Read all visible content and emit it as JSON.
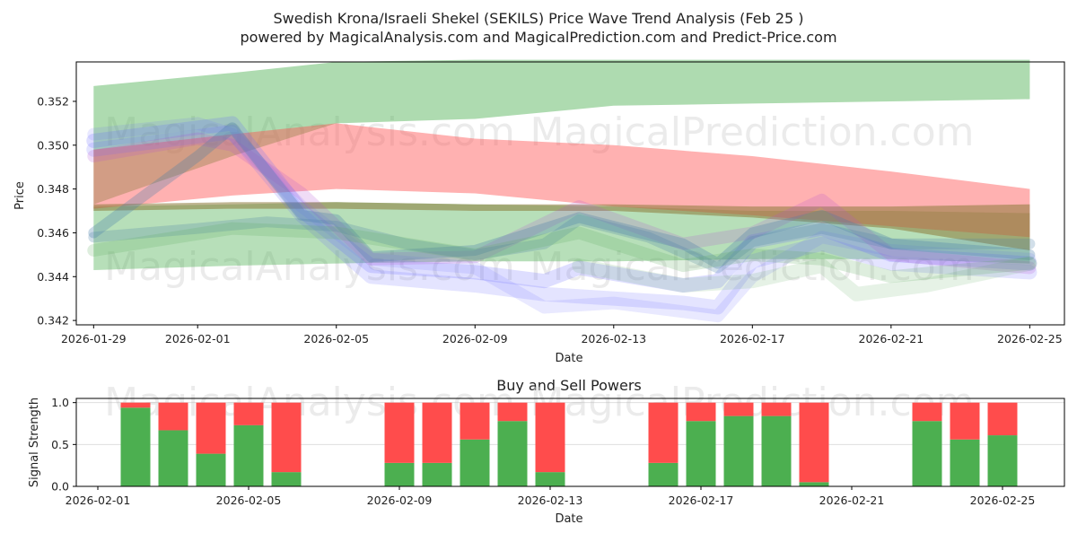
{
  "chart_data": [
    {
      "type": "area",
      "title": "Swedish Krona/Israeli Shekel (SEKILS) Price Wave Trend Analysis (Feb 25 )",
      "subtitle": "powered by MagicalAnalysis.com and MagicalPrediction.com and Predict-Price.com",
      "xlabel": "Date",
      "ylabel": "Price",
      "xlim": [
        "2026-01-28T12:00",
        "2026-02-26"
      ],
      "ylim": [
        0.3418,
        0.3538
      ],
      "x_ticks": [
        "2026-01-29",
        "2026-02-01",
        "2026-02-05",
        "2026-02-09",
        "2026-02-13",
        "2026-02-17",
        "2026-02-21",
        "2026-02-25"
      ],
      "y_ticks": [
        0.342,
        0.344,
        0.346,
        0.348,
        0.35,
        0.352
      ],
      "y_tick_labels": [
        "0.342",
        "0.344",
        "0.346",
        "0.348",
        "0.350",
        "0.352"
      ],
      "watermarks": [
        "MagicalAnalysis.com",
        "MagicalPrediction.com",
        "MagicalAnalysis.com",
        "MagicalPrediction.com"
      ],
      "bands": [
        {
          "name": "green-channel-upper",
          "color": "#4caf50",
          "opacity": 0.45,
          "x": [
            "2026-01-29",
            "2026-02-02",
            "2026-02-05",
            "2026-02-09",
            "2026-02-13",
            "2026-02-17",
            "2026-02-21",
            "2026-02-25"
          ],
          "upper": [
            0.3527,
            0.3533,
            0.3538,
            0.3539,
            0.3539,
            0.3539,
            0.3539,
            0.3539
          ],
          "lower": [
            0.3473,
            0.3495,
            0.351,
            0.3512,
            0.3518,
            0.3519,
            0.352,
            0.3521
          ]
        },
        {
          "name": "green-channel-lower",
          "color": "#4caf50",
          "opacity": 0.4,
          "x": [
            "2026-01-29",
            "2026-02-02",
            "2026-02-05",
            "2026-02-09",
            "2026-02-13",
            "2026-02-17",
            "2026-02-21",
            "2026-02-25"
          ],
          "upper": [
            0.3472,
            0.3473,
            0.3474,
            0.3473,
            0.3472,
            0.347,
            0.347,
            0.3469
          ],
          "lower": [
            0.3443,
            0.3445,
            0.3446,
            0.3447,
            0.3447,
            0.3448,
            0.3448,
            0.3446
          ]
        },
        {
          "name": "red-channel",
          "color": "#ff5252",
          "opacity": 0.45,
          "x": [
            "2026-01-29",
            "2026-02-02",
            "2026-02-05",
            "2026-02-09",
            "2026-02-13",
            "2026-02-17",
            "2026-02-21",
            "2026-02-25"
          ],
          "upper": [
            0.3498,
            0.3505,
            0.351,
            0.3503,
            0.35,
            0.3495,
            0.3488,
            0.348
          ],
          "lower": [
            0.3471,
            0.3477,
            0.348,
            0.3478,
            0.3472,
            0.3468,
            0.3463,
            0.3458
          ]
        },
        {
          "name": "olive-channel",
          "color": "#8d7a3a",
          "opacity": 0.55,
          "x": [
            "2026-01-29",
            "2026-02-02",
            "2026-02-05",
            "2026-02-09",
            "2026-02-13",
            "2026-02-17",
            "2026-02-21",
            "2026-02-25"
          ],
          "upper": [
            0.3473,
            0.3474,
            0.3474,
            0.3473,
            0.3473,
            0.3472,
            0.3472,
            0.3473
          ],
          "lower": [
            0.347,
            0.3471,
            0.3471,
            0.347,
            0.347,
            0.3467,
            0.3462,
            0.3452
          ]
        }
      ],
      "wave_lines": [
        {
          "name": "blue-wave-1",
          "color": "#6b6bff",
          "opacity": 0.22,
          "width": 16,
          "x": [
            "2026-01-29",
            "2026-02-01",
            "2026-02-02",
            "2026-02-04",
            "2026-02-06",
            "2026-02-09",
            "2026-02-11",
            "2026-02-12",
            "2026-02-15",
            "2026-02-16",
            "2026-02-17",
            "2026-02-19",
            "2026-02-21",
            "2026-02-25"
          ],
          "y": [
            0.3502,
            0.3508,
            0.351,
            0.347,
            0.3445,
            0.3442,
            0.3438,
            0.3444,
            0.3436,
            0.3438,
            0.3456,
            0.3462,
            0.345,
            0.3446
          ]
        },
        {
          "name": "blue-wave-2",
          "color": "#6b6bff",
          "opacity": 0.18,
          "width": 16,
          "x": [
            "2026-01-29",
            "2026-02-01",
            "2026-02-02",
            "2026-02-04",
            "2026-02-06",
            "2026-02-09",
            "2026-02-11",
            "2026-02-13",
            "2026-02-15",
            "2026-02-16",
            "2026-02-17",
            "2026-02-19",
            "2026-02-21",
            "2026-02-25"
          ],
          "y": [
            0.3498,
            0.3504,
            0.3506,
            0.3468,
            0.344,
            0.3436,
            0.3432,
            0.343,
            0.3428,
            0.3426,
            0.3447,
            0.3455,
            0.3446,
            0.3442
          ]
        },
        {
          "name": "blue-wave-3",
          "color": "#6b6bff",
          "opacity": 0.15,
          "width": 14,
          "x": [
            "2026-01-29",
            "2026-02-01",
            "2026-02-02",
            "2026-02-04",
            "2026-02-06",
            "2026-02-09",
            "2026-02-11",
            "2026-02-13",
            "2026-02-16",
            "2026-02-17",
            "2026-02-19",
            "2026-02-21",
            "2026-02-25"
          ],
          "y": [
            0.3505,
            0.351,
            0.3505,
            0.3472,
            0.3448,
            0.3444,
            0.3426,
            0.3428,
            0.3422,
            0.344,
            0.3458,
            0.3452,
            0.3448
          ]
        },
        {
          "name": "purple-wave",
          "color": "#b24fd0",
          "opacity": 0.2,
          "width": 14,
          "x": [
            "2026-01-29",
            "2026-02-01",
            "2026-02-02",
            "2026-02-04",
            "2026-02-06",
            "2026-02-09",
            "2026-02-12",
            "2026-02-15",
            "2026-02-17",
            "2026-02-19",
            "2026-02-21",
            "2026-02-25"
          ],
          "y": [
            0.3495,
            0.3503,
            0.35,
            0.3478,
            0.3448,
            0.3449,
            0.3472,
            0.3455,
            0.346,
            0.3475,
            0.345,
            0.3444
          ]
        },
        {
          "name": "teal-wave-1",
          "color": "#4a7fa8",
          "opacity": 0.3,
          "width": 12,
          "x": [
            "2026-01-29",
            "2026-02-01",
            "2026-02-02",
            "2026-02-04",
            "2026-02-05",
            "2026-02-06",
            "2026-02-09",
            "2026-02-12",
            "2026-02-15",
            "2026-02-16",
            "2026-02-17",
            "2026-02-19",
            "2026-02-21",
            "2026-02-25"
          ],
          "y": [
            0.346,
            0.3495,
            0.3508,
            0.3468,
            0.3466,
            0.3449,
            0.3452,
            0.3467,
            0.3455,
            0.3446,
            0.346,
            0.3468,
            0.3455,
            0.345
          ]
        },
        {
          "name": "teal-wave-2",
          "color": "#4a7fa8",
          "opacity": 0.25,
          "width": 12,
          "x": [
            "2026-01-29",
            "2026-02-01",
            "2026-02-03",
            "2026-02-05",
            "2026-02-07",
            "2026-02-09",
            "2026-02-11",
            "2026-02-12",
            "2026-02-14",
            "2026-02-16",
            "2026-02-17",
            "2026-02-19",
            "2026-02-21",
            "2026-02-25"
          ],
          "y": [
            0.3458,
            0.3462,
            0.3465,
            0.3463,
            0.3455,
            0.345,
            0.3455,
            0.3466,
            0.3458,
            0.3444,
            0.3456,
            0.3462,
            0.3455,
            0.3455
          ]
        },
        {
          "name": "green-wave",
          "color": "#5aa85a",
          "opacity": 0.2,
          "width": 14,
          "x": [
            "2026-01-29",
            "2026-02-02",
            "2026-02-05",
            "2026-02-09",
            "2026-02-12",
            "2026-02-15",
            "2026-02-17",
            "2026-02-19",
            "2026-02-21",
            "2026-02-25"
          ],
          "y": [
            0.3452,
            0.3462,
            0.346,
            0.345,
            0.346,
            0.3445,
            0.345,
            0.3448,
            0.344,
            0.3446
          ]
        },
        {
          "name": "green-wave-low",
          "color": "#5aa85a",
          "opacity": 0.15,
          "width": 16,
          "x": [
            "2026-02-12",
            "2026-02-15",
            "2026-02-17",
            "2026-02-19",
            "2026-02-20",
            "2026-02-22",
            "2026-02-25"
          ],
          "y": [
            0.3445,
            0.3436,
            0.3438,
            0.3445,
            0.3432,
            0.3436,
            0.3446
          ]
        }
      ]
    },
    {
      "type": "bar",
      "title": "Buy and Sell Powers",
      "xlabel": "Date",
      "ylabel": "Signal Strength",
      "ylim": [
        0,
        1.05
      ],
      "y_ticks": [
        0.0,
        0.5,
        1.0
      ],
      "y_tick_labels": [
        "0.0",
        "0.5",
        "1.0"
      ],
      "x_ticks": [
        "2026-02-01",
        "2026-02-05",
        "2026-02-09",
        "2026-02-13",
        "2026-02-17",
        "2026-02-21",
        "2026-02-25"
      ],
      "buy_color": "#4caf50",
      "sell_color": "#ff4c4c",
      "dates": [
        "2026-02-02",
        "2026-02-03",
        "2026-02-04",
        "2026-02-05",
        "2026-02-06",
        "2026-02-09",
        "2026-02-10",
        "2026-02-11",
        "2026-02-12",
        "2026-02-13",
        "2026-02-16",
        "2026-02-17",
        "2026-02-18",
        "2026-02-19",
        "2026-02-20",
        "2026-02-23",
        "2026-02-24",
        "2026-02-25"
      ],
      "buy": [
        0.94,
        0.67,
        0.39,
        0.73,
        0.17,
        0.28,
        0.28,
        0.56,
        0.78,
        0.17,
        0.28,
        0.78,
        0.84,
        0.84,
        0.05,
        0.78,
        0.56,
        0.61
      ],
      "sell": [
        0.06,
        0.33,
        0.61,
        0.27,
        0.83,
        0.72,
        0.72,
        0.44,
        0.22,
        0.83,
        0.72,
        0.22,
        0.16,
        0.16,
        0.95,
        0.22,
        0.44,
        0.39
      ],
      "watermarks": [
        "MagicalAnalysis.com",
        "MagicalPrediction.com"
      ]
    }
  ]
}
